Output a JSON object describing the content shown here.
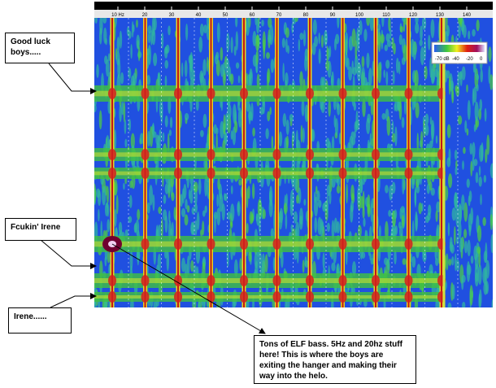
{
  "ruler": {
    "labels": [
      "10 Hz",
      "20",
      "30",
      "40",
      "50",
      "60",
      "70",
      "80",
      "90",
      "100",
      "110",
      "120",
      "130",
      "140"
    ]
  },
  "colorbar": {
    "labels": [
      "-70 dB",
      "-40",
      "-20",
      "0"
    ]
  },
  "callouts": [
    {
      "text": "Good luck boys....."
    },
    {
      "text": "Fcukin' Irene"
    },
    {
      "text": "Irene......"
    },
    {
      "text": "Tons of ELF bass. 5Hz and 20hz stuff here! This is where the boys are exiting the hanger and making their way into the helo."
    }
  ]
}
